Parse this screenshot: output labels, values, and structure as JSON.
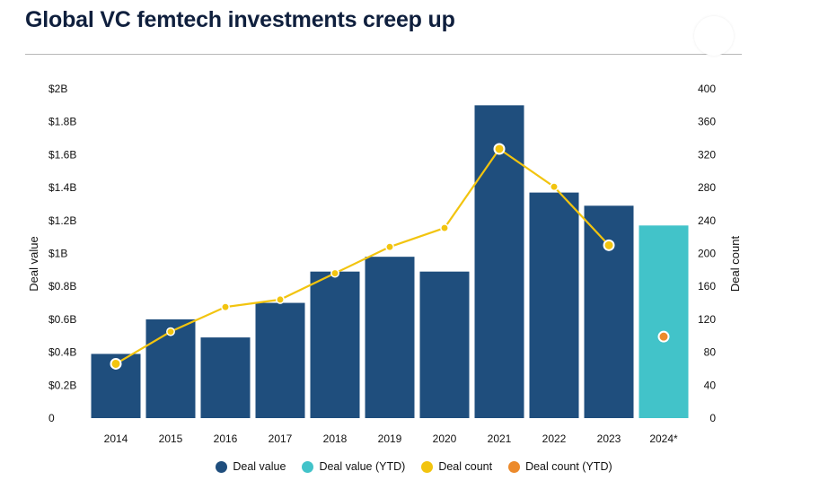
{
  "header": {
    "title": "Global VC femtech investments creep up"
  },
  "colors": {
    "deal_value": "#1f4e7d",
    "deal_value_ytd": "#42c3c9",
    "deal_count": "#f2c40f",
    "deal_count_ytd": "#ec8a2b"
  },
  "chart_data": {
    "type": "bar",
    "title": "Global VC femtech investments creep up",
    "categories": [
      "2014",
      "2015",
      "2016",
      "2017",
      "2018",
      "2019",
      "2020",
      "2021",
      "2022",
      "2023",
      "2024*"
    ],
    "series": [
      {
        "name": "Deal value",
        "axis": "left",
        "unit": "B",
        "values": [
          0.39,
          0.6,
          0.49,
          0.7,
          0.89,
          0.98,
          0.89,
          1.9,
          1.37,
          1.29,
          null
        ]
      },
      {
        "name": "Deal value (YTD)",
        "axis": "left",
        "unit": "B",
        "values": [
          null,
          null,
          null,
          null,
          null,
          null,
          null,
          null,
          null,
          null,
          1.17
        ]
      },
      {
        "name": "Deal count",
        "axis": "right",
        "type": "line",
        "values": [
          66,
          105,
          135,
          144,
          176,
          208,
          231,
          327,
          281,
          210,
          null
        ]
      },
      {
        "name": "Deal count (YTD)",
        "axis": "right",
        "type": "scatter",
        "values": [
          null,
          null,
          null,
          null,
          null,
          null,
          null,
          null,
          null,
          null,
          99
        ]
      }
    ],
    "ylabel": "Deal value",
    "y2label": "Deal count",
    "ylim": [
      0,
      2
    ],
    "y2lim": [
      0,
      400
    ],
    "yticks": [
      "0",
      "$0.2B",
      "$0.4B",
      "$0.6B",
      "$0.8B",
      "$1B",
      "$1.2B",
      "$1.4B",
      "$1.6B",
      "$1.8B",
      "$2B"
    ],
    "y2ticks": [
      "0",
      "40",
      "80",
      "120",
      "160",
      "200",
      "240",
      "280",
      "320",
      "360",
      "400"
    ],
    "legend": [
      "Deal value",
      "Deal value (YTD)",
      "Deal count",
      "Deal count (YTD)"
    ],
    "legend_position": "bottom",
    "grid": false
  }
}
